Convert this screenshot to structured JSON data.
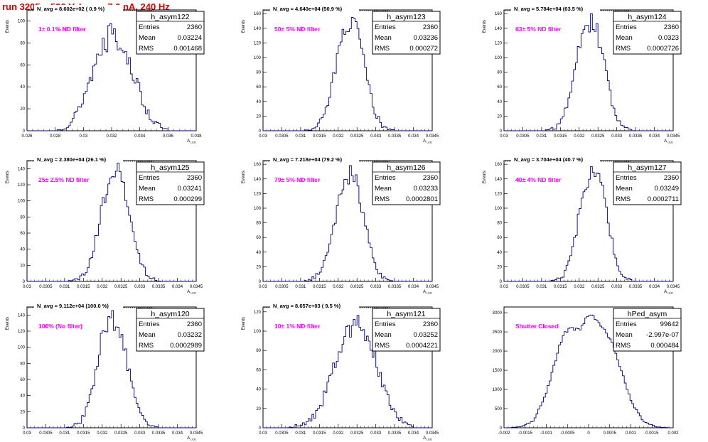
{
  "run_title": "run 3205,   590 V, I_pe ≈ 7.0 nA, 240 Hz",
  "colors": {
    "hist_line": "#000080",
    "label_magenta": "#ff00ff",
    "title_red": "#e00000"
  },
  "chart_data": [
    {
      "type": "histogram",
      "name": "h_asym122",
      "navg": "N_avg = 8.602e+02 ( 0.9 %)",
      "filter": "1± 0.1% ND filter",
      "stats": {
        "entries": "2360",
        "mean": "0.03224",
        "rms": "0.001468"
      },
      "xlabel": "A_LED",
      "ylabel": "Events",
      "xlim": [
        0.0255,
        0.0385
      ],
      "ylim": [
        0,
        110
      ],
      "xticks": [
        "0.026",
        "0.028",
        "0.03",
        "0.032",
        "0.034",
        "0.036",
        "0.038"
      ],
      "yticks": [
        "0",
        "20",
        "40",
        "60",
        "80",
        "100"
      ],
      "x": [
        0.0255,
        0.026,
        0.0265,
        0.027,
        0.0275,
        0.028,
        0.0285,
        0.029,
        0.0295,
        0.03,
        0.0305,
        0.031,
        0.0315,
        0.032,
        0.0325,
        0.033,
        0.0335,
        0.034,
        0.0345,
        0.035,
        0.0355,
        0.036,
        0.0365,
        0.037,
        0.0375,
        0.038,
        0.0385
      ],
      "y": [
        0,
        0,
        0,
        0,
        0,
        1,
        4,
        10,
        20,
        36,
        52,
        70,
        86,
        98,
        88,
        74,
        58,
        40,
        24,
        12,
        6,
        2,
        0,
        0,
        0,
        0,
        0
      ],
      "shape": "flat_top"
    },
    {
      "type": "histogram",
      "name": "h_asym123",
      "navg": "N_avg = 4.640e+04 (50.9 %)",
      "filter": "50± 5% ND filter",
      "stats": {
        "entries": "2360",
        "mean": "0.03236",
        "rms": "0.000272"
      },
      "xlabel": "A_LED",
      "ylabel": "Events",
      "xlim": [
        0.03,
        0.0345
      ],
      "ylim": [
        0,
        165
      ],
      "xticks": [
        "0.03",
        "0.0305",
        "0.031",
        "0.0315",
        "0.032",
        "0.0325",
        "0.033",
        "0.0335",
        "0.034",
        "0.0345"
      ],
      "yticks": [
        "0",
        "20",
        "40",
        "60",
        "80",
        "100",
        "120",
        "140",
        "160"
      ],
      "x": [
        0.031,
        0.0312,
        0.0314,
        0.0316,
        0.0318,
        0.032,
        0.0322,
        0.0324,
        0.0326,
        0.0328,
        0.033,
        0.0332,
        0.0334,
        0.0336,
        0.0338
      ],
      "y": [
        0,
        1,
        4,
        18,
        52,
        104,
        142,
        152,
        120,
        64,
        22,
        5,
        1,
        0,
        0
      ]
    },
    {
      "type": "histogram",
      "name": "h_asym124",
      "navg": "N_avg = 5.784e+04 (63.5 %)",
      "filter": "63± 5% ND filter",
      "stats": {
        "entries": "2360",
        "mean": "0.0323",
        "rms": "0.0002726"
      },
      "xlabel": "A_LED",
      "ylabel": "Events",
      "xlim": [
        0.03,
        0.0345
      ],
      "ylim": [
        0,
        165
      ],
      "xticks": [
        "0.03",
        "0.0305",
        "0.031",
        "0.0315",
        "0.032",
        "0.0325",
        "0.033",
        "0.0335",
        "0.034",
        "0.0345"
      ],
      "yticks": [
        "0",
        "20",
        "40",
        "60",
        "80",
        "100",
        "120",
        "140",
        "160"
      ],
      "x": [
        0.031,
        0.0312,
        0.0314,
        0.0316,
        0.0318,
        0.032,
        0.0322,
        0.0324,
        0.0326,
        0.0328,
        0.033,
        0.0332,
        0.0334,
        0.0336,
        0.0338
      ],
      "y": [
        0,
        1,
        5,
        22,
        60,
        112,
        146,
        150,
        108,
        54,
        18,
        4,
        1,
        0,
        0
      ]
    },
    {
      "type": "histogram",
      "name": "h_asym125",
      "navg": "N_avg = 2.380e+04 (26.1 %)",
      "filter": "25± 2.5% ND filter",
      "stats": {
        "entries": "2360",
        "mean": "0.03241",
        "rms": "0.000299"
      },
      "xlabel": "A_LED",
      "ylabel": "Events",
      "xlim": [
        0.03,
        0.0345
      ],
      "ylim": [
        0,
        150
      ],
      "xticks": [
        "0.03",
        "0.0305",
        "0.031",
        "0.0315",
        "0.032",
        "0.0325",
        "0.033",
        "0.0335",
        "0.034",
        "0.0345"
      ],
      "yticks": [
        "0",
        "20",
        "40",
        "60",
        "80",
        "100",
        "120",
        "140"
      ],
      "x": [
        0.031,
        0.0312,
        0.0314,
        0.0316,
        0.0318,
        0.032,
        0.0322,
        0.0324,
        0.0326,
        0.0328,
        0.033,
        0.0332,
        0.0334,
        0.0336,
        0.0338
      ],
      "y": [
        0,
        1,
        4,
        14,
        44,
        94,
        130,
        140,
        118,
        70,
        28,
        8,
        2,
        0,
        0
      ]
    },
    {
      "type": "histogram",
      "name": "h_asym126",
      "navg": "N_avg = 7.218e+04 (79.2 %)",
      "filter": "79± 5% ND filter",
      "stats": {
        "entries": "2360",
        "mean": "0.03233",
        "rms": "0.0002801"
      },
      "xlabel": "A_LED",
      "ylabel": "Events",
      "xlim": [
        0.03,
        0.0345
      ],
      "ylim": [
        0,
        165
      ],
      "xticks": [
        "0.03",
        "0.0305",
        "0.031",
        "0.0315",
        "0.032",
        "0.0325",
        "0.033",
        "0.0335",
        "0.034",
        "0.0345"
      ],
      "yticks": [
        "0",
        "20",
        "40",
        "60",
        "80",
        "100",
        "120",
        "140",
        "160"
      ],
      "x": [
        0.031,
        0.0312,
        0.0314,
        0.0316,
        0.0318,
        0.032,
        0.0322,
        0.0324,
        0.0326,
        0.0328,
        0.033,
        0.0332,
        0.0334,
        0.0336,
        0.0338
      ],
      "y": [
        0,
        1,
        6,
        22,
        58,
        108,
        144,
        150,
        112,
        58,
        20,
        5,
        1,
        0,
        0
      ]
    },
    {
      "type": "histogram",
      "name": "h_asym127",
      "navg": "N_avg = 3.704e+04 (40.7 %)",
      "filter": "40± 4% ND filter",
      "stats": {
        "entries": "2360",
        "mean": "0.03249",
        "rms": "0.0002711"
      },
      "xlabel": "A_LED",
      "ylabel": "Events",
      "xlim": [
        0.03,
        0.0345
      ],
      "ylim": [
        0,
        165
      ],
      "xticks": [
        "0.03",
        "0.0305",
        "0.031",
        "0.0315",
        "0.032",
        "0.0325",
        "0.033",
        "0.0335",
        "0.034",
        "0.0345"
      ],
      "yticks": [
        "0",
        "20",
        "40",
        "60",
        "80",
        "100",
        "120",
        "140",
        "160"
      ],
      "x": [
        0.031,
        0.0312,
        0.0314,
        0.0316,
        0.0318,
        0.032,
        0.0322,
        0.0324,
        0.0326,
        0.0328,
        0.033,
        0.0332,
        0.0334,
        0.0336,
        0.0338
      ],
      "y": [
        0,
        0,
        2,
        10,
        38,
        92,
        138,
        156,
        128,
        70,
        24,
        6,
        1,
        0,
        0
      ]
    },
    {
      "type": "histogram",
      "name": "h_asym120",
      "navg": "N_avg = 9.112e+04 (100.0 %)",
      "filter": "100% (No filter)",
      "stats": {
        "entries": "2360",
        "mean": "0.03232",
        "rms": "0.0002989"
      },
      "xlabel": "A_LED",
      "ylabel": "Events",
      "xlim": [
        0.03,
        0.0345
      ],
      "ylim": [
        0,
        150
      ],
      "xticks": [
        "0.03",
        "0.0305",
        "0.031",
        "0.0315",
        "0.032",
        "0.0325",
        "0.033",
        "0.0335",
        "0.034",
        "0.0345"
      ],
      "yticks": [
        "0",
        "20",
        "40",
        "60",
        "80",
        "100",
        "120",
        "140"
      ],
      "x": [
        0.031,
        0.0312,
        0.0314,
        0.0316,
        0.0318,
        0.032,
        0.0322,
        0.0324,
        0.0326,
        0.0328,
        0.033,
        0.0332,
        0.0334,
        0.0336,
        0.0338
      ],
      "y": [
        0,
        2,
        6,
        24,
        66,
        112,
        136,
        132,
        96,
        50,
        18,
        5,
        1,
        0,
        0
      ]
    },
    {
      "type": "histogram",
      "name": "h_asym121",
      "navg": "N_avg = 8.657e+03 ( 9.5 %)",
      "filter": "10± 1% ND filter",
      "stats": {
        "entries": "2360",
        "mean": "0.03252",
        "rms": "0.0004221"
      },
      "xlabel": "A_LED",
      "ylabel": "Events",
      "xlim": [
        0.03,
        0.0345
      ],
      "ylim": [
        0,
        125
      ],
      "xticks": [
        "0.03",
        "0.0305",
        "0.031",
        "0.0315",
        "0.032",
        "0.0325",
        "0.033",
        "0.0335",
        "0.034",
        "0.0345"
      ],
      "yticks": [
        "0",
        "20",
        "40",
        "60",
        "80",
        "100",
        "120"
      ],
      "x": [
        0.0305,
        0.0308,
        0.0311,
        0.0314,
        0.0317,
        0.032,
        0.0323,
        0.0326,
        0.0329,
        0.0332,
        0.0335,
        0.0338,
        0.0341
      ],
      "y": [
        0,
        1,
        4,
        14,
        38,
        74,
        104,
        110,
        84,
        44,
        16,
        4,
        0
      ]
    },
    {
      "type": "histogram",
      "name": "hPed_asym",
      "navg": "",
      "filter": "Shutter Closed",
      "stats": {
        "entries": "99642",
        "mean": "-2.997e-07",
        "rms": "0.000484"
      },
      "xlabel": "",
      "ylabel": "",
      "xlim": [
        -0.002,
        0.002
      ],
      "ylim": [
        0,
        3150
      ],
      "xticks": [
        "-0.002",
        "-0.0015",
        "-0.001",
        "-0.0005",
        "0",
        "0.0005",
        "0.001",
        "0.0015",
        "0.002"
      ],
      "yticks": [
        "0",
        "500",
        "1000",
        "1500",
        "2000",
        "2500",
        "3000"
      ],
      "x": [
        -0.0019,
        -0.0016,
        -0.0013,
        -0.001,
        -0.0008,
        -0.0006,
        -0.0004,
        -0.0002,
        0.0,
        0.0002,
        0.0004,
        0.0006,
        0.0008,
        0.001,
        0.0013,
        0.0016,
        0.0019
      ],
      "y": [
        0,
        30,
        180,
        900,
        1700,
        2450,
        2600,
        2550,
        3000,
        2800,
        2500,
        2100,
        1400,
        700,
        160,
        25,
        0
      ]
    }
  ]
}
